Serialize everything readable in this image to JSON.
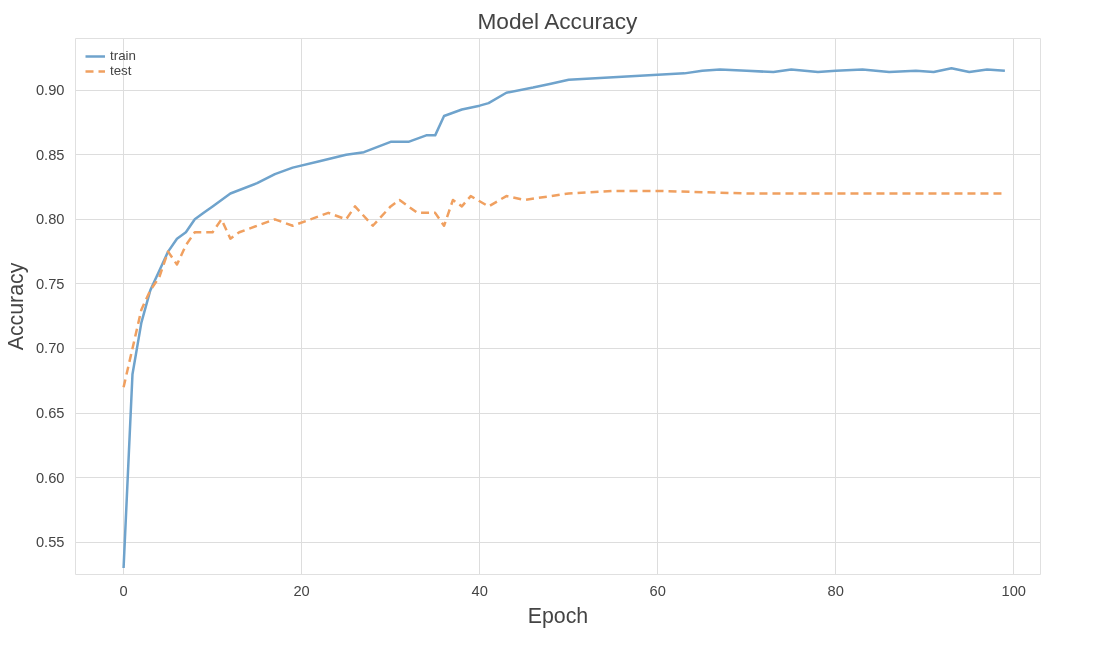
{
  "chart_data": {
    "type": "line",
    "title": "Model Accuracy",
    "xlabel": "Epoch",
    "ylabel": "Accuracy",
    "xlim": [
      -5.4,
      103
    ],
    "ylim": [
      0.525,
      0.94
    ],
    "xticks": [
      0,
      20,
      40,
      60,
      80,
      100
    ],
    "yticks": [
      0.55,
      {
        "value": 0.6,
        "label": "0.60"
      },
      0.65,
      {
        "value": 0.7,
        "label": "0.70"
      },
      0.75,
      {
        "value": 0.8,
        "label": "0.80"
      },
      0.85,
      {
        "value": 0.9,
        "label": "0.90"
      }
    ],
    "grid": true,
    "legend": "top left",
    "series": [
      {
        "name": "train",
        "color": "#6fa3cc",
        "line_style": "solid",
        "x": [
          0,
          1,
          2,
          3,
          4,
          5,
          6,
          7,
          8,
          9,
          10,
          12,
          15,
          17,
          19,
          22,
          25,
          27,
          30,
          32,
          34,
          35,
          36,
          38,
          40,
          41,
          43,
          46,
          48,
          50,
          55,
          60,
          63,
          65,
          67,
          70,
          73,
          75,
          78,
          80,
          83,
          86,
          89,
          91,
          93,
          95,
          97,
          99
        ],
        "values": [
          0.53,
          0.68,
          0.72,
          0.745,
          0.76,
          0.775,
          0.785,
          0.79,
          0.8,
          0.805,
          0.81,
          0.82,
          0.828,
          0.835,
          0.84,
          0.845,
          0.85,
          0.852,
          0.86,
          0.86,
          0.865,
          0.865,
          0.88,
          0.885,
          0.888,
          0.89,
          0.898,
          0.902,
          0.905,
          0.908,
          0.91,
          0.912,
          0.913,
          0.915,
          0.916,
          0.915,
          0.914,
          0.916,
          0.914,
          0.915,
          0.916,
          0.914,
          0.915,
          0.914,
          0.917,
          0.914,
          0.916,
          0.915
        ]
      },
      {
        "name": "test",
        "color": "#f0a060",
        "line_style": "dashed",
        "x": [
          0,
          1,
          2,
          3,
          4,
          5,
          6,
          7,
          8,
          10,
          11,
          12,
          13,
          15,
          17,
          19,
          21,
          23,
          25,
          26,
          28,
          30,
          31,
          33,
          35,
          36,
          37,
          38,
          39,
          41,
          43,
          45,
          50,
          55,
          60,
          70,
          80,
          90,
          99
        ],
        "values": [
          0.67,
          0.7,
          0.73,
          0.745,
          0.755,
          0.775,
          0.765,
          0.78,
          0.79,
          0.79,
          0.8,
          0.785,
          0.79,
          0.795,
          0.8,
          0.795,
          0.8,
          0.805,
          0.8,
          0.81,
          0.795,
          0.81,
          0.815,
          0.805,
          0.805,
          0.795,
          0.815,
          0.81,
          0.818,
          0.81,
          0.818,
          0.815,
          0.82,
          0.822,
          0.822,
          0.82,
          0.82,
          0.82,
          0.82
        ]
      }
    ]
  }
}
